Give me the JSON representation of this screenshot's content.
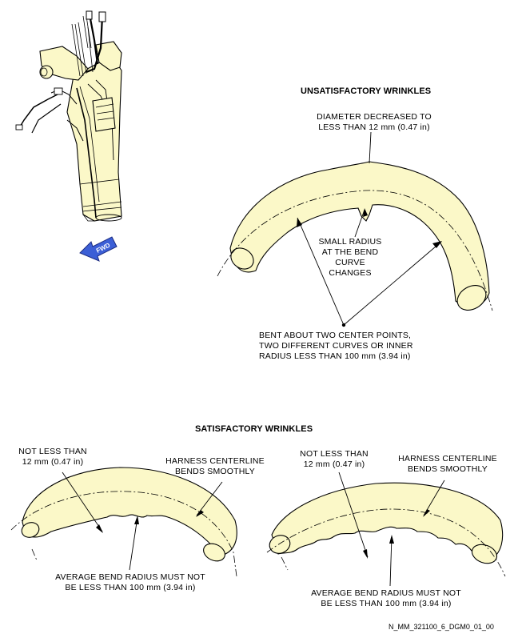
{
  "sections": {
    "unsatisfactory": {
      "title": "UNSATISFACTORY WRINKLES",
      "labels": {
        "diameter": [
          "DIAMETER DECREASED TO",
          "LESS THAN 12 mm (0.47 in)"
        ],
        "small_radius": [
          "SMALL RADIUS",
          "AT THE BEND",
          "CURVE",
          "CHANGES"
        ],
        "bent": [
          "BENT ABOUT TWO CENTER POINTS,",
          "TWO DIFFERENT CURVES OR INNER",
          "RADIUS LESS THAN 100 mm (3.94 in)"
        ]
      }
    },
    "satisfactory": {
      "title": "SATISFACTORY WRINKLES",
      "left": {
        "not_less": [
          "NOT LESS THAN",
          "12 mm (0.47 in)"
        ],
        "centerline": [
          "HARNESS CENTERLINE",
          "BENDS SMOOTHLY"
        ],
        "average": [
          "AVERAGE BEND RADIUS MUST NOT",
          "BE LESS THAN 100 mm (3.94 in)"
        ]
      },
      "right": {
        "not_less": [
          "NOT LESS THAN",
          "12 mm (0.47 in)"
        ],
        "centerline": [
          "HARNESS CENTERLINE",
          "BENDS SMOOTHLY"
        ],
        "average": [
          "AVERAGE BEND RADIUS MUST NOT",
          "BE LESS THAN 100 mm (3.94 in)"
        ]
      }
    }
  },
  "fwd_arrow_label": "FWD",
  "figure_code": "N_MM_321100_6_DGM0_01_00",
  "colors": {
    "harness_fill": "#fbf8c8",
    "line": "#000000",
    "fwd_arrow_fill": "#3c5fd6"
  }
}
